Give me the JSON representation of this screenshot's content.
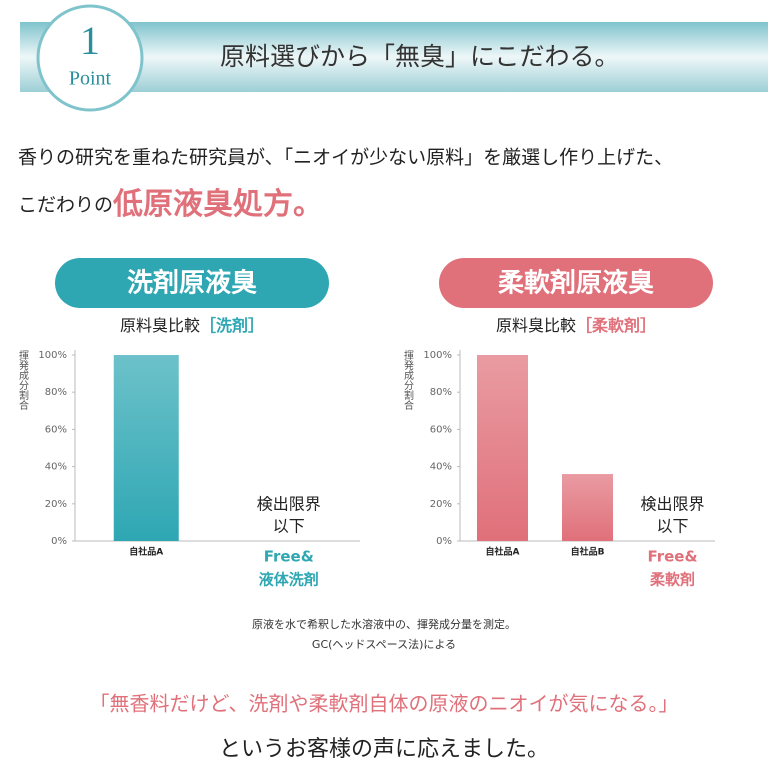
{
  "header": {
    "badge_number": "1",
    "badge_word": "Point",
    "title": "原料選びから「無臭」にこだわる。"
  },
  "intro": {
    "line1": "香りの研究を重ねた研究員が、「ニオイが少ない原料」を厳選し作り上げた、",
    "line2_prefix": "こだわりの",
    "line2_emphasis": "低原液臭処方。"
  },
  "chart_data": [
    {
      "type": "bar",
      "badge": "洗剤原液臭",
      "title": "原料臭比較",
      "title_tag": "［洗剤］",
      "y_label": "揮発成分割合",
      "categories": [
        [
          "自社品A"
        ],
        [
          "Free&",
          "液体洗剤"
        ]
      ],
      "values": [
        100,
        null
      ],
      "color": "#2ea7b3",
      "annotation": [
        "検出限界",
        "以下"
      ],
      "ylim": [
        0,
        100
      ],
      "grid": false,
      "yticks": [
        {
          "value": 0,
          "label": "0%"
        },
        {
          "value": 20,
          "label": "20%"
        },
        {
          "value": 40,
          "label": "40%"
        },
        {
          "value": 60,
          "label": "60%"
        },
        {
          "value": 80,
          "label": "80%"
        },
        {
          "value": 100,
          "label": "100%"
        }
      ]
    },
    {
      "type": "bar",
      "badge": "柔軟剤原液臭",
      "title": "原料臭比較",
      "title_tag": "［柔軟剤］",
      "y_label": "揮発成分割合",
      "categories": [
        [
          "自社品A"
        ],
        [
          "自社品B"
        ],
        [
          "Free&",
          "柔軟剤"
        ]
      ],
      "values": [
        100,
        36,
        null
      ],
      "color": "#e0707a",
      "annotation": [
        "検出限界",
        "以下"
      ],
      "ylim": [
        0,
        100
      ],
      "grid": false,
      "yticks": [
        {
          "value": 0,
          "label": "0%"
        },
        {
          "value": 20,
          "label": "20%"
        },
        {
          "value": 40,
          "label": "40%"
        },
        {
          "value": 60,
          "label": "60%"
        },
        {
          "value": 80,
          "label": "80%"
        },
        {
          "value": 100,
          "label": "100%"
        }
      ]
    }
  ],
  "notes": [
    "原液を水で希釈した水溶液中の、揮発成分量を測定。",
    "GC(ヘッドスペース法)による"
  ],
  "footer": {
    "quote": "「無香料だけど、洗剤や柔軟剤自体の原液のニオイが気になる。」",
    "closing": "というお客様の声に応えました。"
  }
}
